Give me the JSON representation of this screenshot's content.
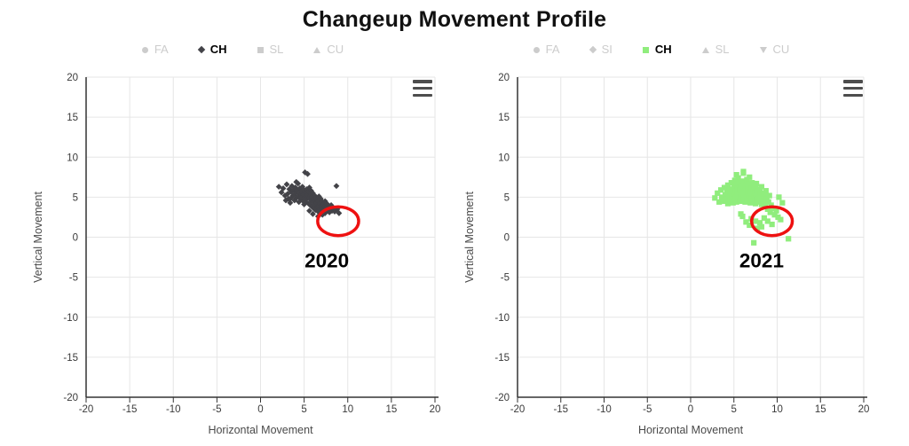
{
  "title": "Changeup Movement Profile",
  "colors": {
    "active_series_left": "#434348",
    "active_series_right": "#90ed7d",
    "inactive_legend": "#cccccc",
    "grid": "#e6e6e6",
    "axis": "#333333",
    "tick_text": "#3a3a3a",
    "axis_title_text": "#4a4a4a",
    "annotation_red": "#ee1111",
    "title_text": "#111111"
  },
  "menu_icon": "hamburger-export-menu",
  "chart_data": [
    {
      "type": "scatter",
      "year_annotation": "2020",
      "xlabel": "Horizontal Movement",
      "ylabel": "Vertical Movement",
      "xlim": [
        -20,
        20
      ],
      "ylim": [
        -20,
        20
      ],
      "tick_step": 5,
      "grid": true,
      "legend_position": "top",
      "legend": [
        {
          "label": "FA",
          "symbol": "circle",
          "active": false
        },
        {
          "label": "CH",
          "symbol": "diamond",
          "active": true,
          "color": "#434348"
        },
        {
          "label": "SL",
          "symbol": "square",
          "active": false
        },
        {
          "label": "CU",
          "symbol": "triangle-up",
          "active": false
        }
      ],
      "series": [
        {
          "name": "CH",
          "marker": "diamond",
          "color": "#434348",
          "points": [
            [
              2.1,
              6.3
            ],
            [
              2.4,
              5.6
            ],
            [
              2.6,
              6.1
            ],
            [
              2.8,
              5.2
            ],
            [
              2.9,
              4.6
            ],
            [
              3.0,
              6.6
            ],
            [
              3.1,
              5.4
            ],
            [
              3.2,
              4.8
            ],
            [
              3.3,
              6.0
            ],
            [
              3.4,
              4.3
            ],
            [
              3.5,
              5.7
            ],
            [
              3.5,
              4.9
            ],
            [
              3.6,
              6.4
            ],
            [
              3.7,
              5.2
            ],
            [
              3.8,
              5.9
            ],
            [
              3.9,
              4.6
            ],
            [
              4.0,
              5.5
            ],
            [
              4.0,
              6.2
            ],
            [
              4.1,
              4.9
            ],
            [
              4.1,
              6.9
            ],
            [
              4.2,
              5.8
            ],
            [
              4.3,
              5.1
            ],
            [
              4.3,
              6.7
            ],
            [
              4.4,
              4.4
            ],
            [
              4.5,
              5.4
            ],
            [
              4.5,
              6.1
            ],
            [
              4.6,
              4.8
            ],
            [
              4.7,
              5.7
            ],
            [
              4.7,
              5.0
            ],
            [
              4.8,
              6.3
            ],
            [
              4.9,
              4.5
            ],
            [
              4.9,
              5.3
            ],
            [
              5.0,
              5.9
            ],
            [
              5.0,
              4.1
            ],
            [
              5.1,
              5.0
            ],
            [
              5.1,
              8.1
            ],
            [
              5.2,
              5.6
            ],
            [
              5.2,
              4.4
            ],
            [
              5.3,
              6.0
            ],
            [
              5.3,
              4.8
            ],
            [
              5.4,
              5.3
            ],
            [
              5.4,
              7.9
            ],
            [
              5.5,
              4.2
            ],
            [
              5.5,
              5.7
            ],
            [
              5.6,
              4.9
            ],
            [
              5.6,
              6.2
            ],
            [
              5.6,
              3.3
            ],
            [
              5.7,
              4.0
            ],
            [
              5.7,
              5.2
            ],
            [
              5.8,
              4.6
            ],
            [
              5.8,
              5.8
            ],
            [
              5.9,
              3.8
            ],
            [
              5.9,
              5.0
            ],
            [
              6.0,
              4.4
            ],
            [
              6.0,
              5.5
            ],
            [
              6.0,
              2.9
            ],
            [
              6.1,
              3.6
            ],
            [
              6.1,
              4.8
            ],
            [
              6.2,
              5.2
            ],
            [
              6.2,
              4.1
            ],
            [
              6.3,
              4.6
            ],
            [
              6.3,
              3.4
            ],
            [
              6.4,
              5.0
            ],
            [
              6.4,
              4.3
            ],
            [
              6.5,
              3.8
            ],
            [
              6.5,
              4.7
            ],
            [
              6.6,
              3.2
            ],
            [
              6.6,
              4.5
            ],
            [
              6.6,
              2.6
            ],
            [
              6.7,
              3.9
            ],
            [
              6.7,
              5.1
            ],
            [
              6.8,
              3.5
            ],
            [
              6.8,
              4.2
            ],
            [
              6.9,
              4.8
            ],
            [
              6.9,
              3.1
            ],
            [
              7.0,
              4.0
            ],
            [
              7.0,
              3.6
            ],
            [
              7.1,
              4.4
            ],
            [
              7.1,
              2.8
            ],
            [
              7.2,
              3.3
            ],
            [
              7.2,
              4.1
            ],
            [
              7.3,
              3.8
            ],
            [
              7.4,
              4.5
            ],
            [
              7.4,
              3.0
            ],
            [
              7.5,
              3.7
            ],
            [
              7.6,
              4.2
            ],
            [
              7.7,
              3.4
            ],
            [
              7.8,
              3.9
            ],
            [
              7.9,
              3.1
            ],
            [
              8.0,
              3.6
            ],
            [
              8.1,
              4.0
            ],
            [
              8.2,
              3.3
            ],
            [
              8.3,
              3.7
            ],
            [
              8.5,
              3.2
            ],
            [
              8.7,
              6.4
            ],
            [
              8.8,
              3.5
            ],
            [
              9.0,
              3.0
            ]
          ]
        }
      ],
      "annotation": {
        "label": "2020",
        "ellipse": {
          "cx": 8.9,
          "cy": 2.0,
          "rx": 2.35,
          "ry": 1.8
        },
        "label_x": 7.6,
        "label_y": -2.9
      }
    },
    {
      "type": "scatter",
      "year_annotation": "2021",
      "xlabel": "Horizontal Movement",
      "ylabel": "Vertical Movement",
      "xlim": [
        -20,
        20
      ],
      "ylim": [
        -20,
        20
      ],
      "tick_step": 5,
      "grid": true,
      "legend_position": "top",
      "legend": [
        {
          "label": "FA",
          "symbol": "circle",
          "active": false
        },
        {
          "label": "SI",
          "symbol": "diamond",
          "active": false
        },
        {
          "label": "CH",
          "symbol": "square",
          "active": true,
          "color": "#90ed7d"
        },
        {
          "label": "SL",
          "symbol": "triangle-up",
          "active": false
        },
        {
          "label": "CU",
          "symbol": "triangle-down",
          "active": false
        }
      ],
      "series": [
        {
          "name": "CH",
          "marker": "square",
          "color": "#90ed7d",
          "points": [
            [
              2.8,
              4.9
            ],
            [
              3.1,
              5.5
            ],
            [
              3.3,
              4.4
            ],
            [
              3.5,
              5.9
            ],
            [
              3.6,
              5.0
            ],
            [
              3.8,
              4.5
            ],
            [
              3.9,
              6.2
            ],
            [
              4.0,
              5.3
            ],
            [
              4.1,
              4.7
            ],
            [
              4.2,
              5.8
            ],
            [
              4.3,
              6.5
            ],
            [
              4.3,
              4.2
            ],
            [
              4.4,
              5.1
            ],
            [
              4.5,
              6.0
            ],
            [
              4.6,
              4.6
            ],
            [
              4.6,
              5.5
            ],
            [
              4.7,
              6.8
            ],
            [
              4.8,
              4.9
            ],
            [
              4.8,
              5.9
            ],
            [
              4.9,
              4.3
            ],
            [
              5.0,
              5.4
            ],
            [
              5.0,
              6.3
            ],
            [
              5.1,
              4.7
            ],
            [
              5.1,
              7.1
            ],
            [
              5.2,
              5.8
            ],
            [
              5.2,
              5.0
            ],
            [
              5.3,
              6.6
            ],
            [
              5.3,
              4.4
            ],
            [
              5.3,
              7.8
            ],
            [
              5.4,
              5.5
            ],
            [
              5.4,
              6.1
            ],
            [
              5.5,
              4.8
            ],
            [
              5.5,
              7.4
            ],
            [
              5.6,
              5.2
            ],
            [
              5.6,
              6.9
            ],
            [
              5.7,
              4.5
            ],
            [
              5.7,
              5.9
            ],
            [
              5.8,
              6.4
            ],
            [
              5.8,
              5.1
            ],
            [
              5.8,
              2.9
            ],
            [
              5.9,
              7.0
            ],
            [
              5.9,
              4.7
            ],
            [
              6.0,
              5.6
            ],
            [
              6.0,
              6.2
            ],
            [
              6.0,
              2.6
            ],
            [
              6.1,
              4.9
            ],
            [
              6.1,
              8.2
            ],
            [
              6.1,
              8.0
            ],
            [
              6.2,
              5.3
            ],
            [
              6.2,
              6.7
            ],
            [
              6.3,
              4.4
            ],
            [
              6.3,
              5.8
            ],
            [
              6.4,
              6.3
            ],
            [
              6.4,
              5.0
            ],
            [
              6.4,
              1.9
            ],
            [
              6.5,
              7.2
            ],
            [
              6.5,
              4.6
            ],
            [
              6.6,
              5.5
            ],
            [
              6.6,
              6.0
            ],
            [
              6.7,
              4.8
            ],
            [
              6.7,
              6.6
            ],
            [
              6.8,
              5.2
            ],
            [
              6.8,
              7.5
            ],
            [
              6.8,
              1.5
            ],
            [
              6.9,
              4.3
            ],
            [
              6.9,
              5.7
            ],
            [
              7.0,
              6.1
            ],
            [
              7.0,
              4.9
            ],
            [
              7.0,
              2.3
            ],
            [
              7.1,
              5.4
            ],
            [
              7.1,
              6.8
            ],
            [
              7.2,
              4.5
            ],
            [
              7.2,
              5.9
            ],
            [
              7.3,
              5.1
            ],
            [
              7.3,
              6.4
            ],
            [
              7.3,
              -0.7
            ],
            [
              7.4,
              4.7
            ],
            [
              7.4,
              5.6
            ],
            [
              7.5,
              6.2
            ],
            [
              7.5,
              4.2
            ],
            [
              7.5,
              2.0
            ],
            [
              7.6,
              5.3
            ],
            [
              7.6,
              6.7
            ],
            [
              7.7,
              4.8
            ],
            [
              7.7,
              1.1
            ],
            [
              7.8,
              5.8
            ],
            [
              7.8,
              4.4
            ],
            [
              7.9,
              5.1
            ],
            [
              8.0,
              6.0
            ],
            [
              8.0,
              4.6
            ],
            [
              8.0,
              1.8
            ],
            [
              8.1,
              5.5
            ],
            [
              8.2,
              4.1
            ],
            [
              8.2,
              6.3
            ],
            [
              8.2,
              1.3
            ],
            [
              8.3,
              5.0
            ],
            [
              8.4,
              4.5
            ],
            [
              8.5,
              5.4
            ],
            [
              8.5,
              2.4
            ],
            [
              8.6,
              4.0
            ],
            [
              8.7,
              5.8
            ],
            [
              8.8,
              4.8
            ],
            [
              8.9,
              3.5
            ],
            [
              8.9,
              2.0
            ],
            [
              9.0,
              4.4
            ],
            [
              9.1,
              5.2
            ],
            [
              9.2,
              3.1
            ],
            [
              9.3,
              4.0
            ],
            [
              9.4,
              1.6
            ],
            [
              9.5,
              3.6
            ],
            [
              9.7,
              2.8
            ],
            [
              9.9,
              3.3
            ],
            [
              10.1,
              2.5
            ],
            [
              10.2,
              5.0
            ],
            [
              10.4,
              2.2
            ],
            [
              10.6,
              4.3
            ],
            [
              11.3,
              -0.2
            ]
          ]
        }
      ],
      "annotation": {
        "label": "2021",
        "ellipse": {
          "cx": 9.4,
          "cy": 2.0,
          "rx": 2.35,
          "ry": 1.8
        },
        "label_x": 8.2,
        "label_y": -2.9
      }
    }
  ]
}
